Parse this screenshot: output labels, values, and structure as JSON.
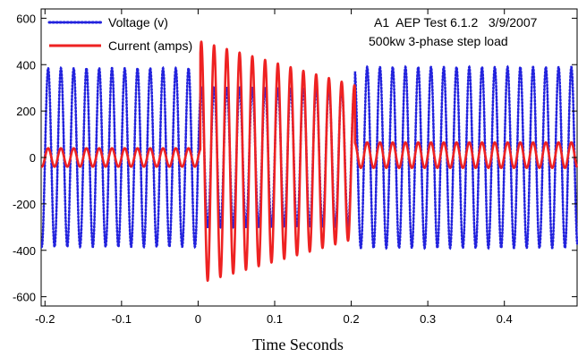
{
  "chart_data": {
    "type": "line",
    "xlabel": "Time Seconds",
    "ylabel": "",
    "xlim": [
      -0.205,
      0.495
    ],
    "ylim": [
      -640,
      640
    ],
    "x_ticks": [
      -0.2,
      -0.1,
      0,
      0.1,
      0.2,
      0.3,
      0.4
    ],
    "x_tick_labels": [
      "-0.2",
      "-0.1",
      "0",
      "0.1",
      "0.2",
      "0.3",
      "0.4"
    ],
    "y_ticks": [
      -600,
      -400,
      -200,
      0,
      200,
      400,
      600
    ],
    "y_tick_labels": [
      "-600",
      "-400",
      "-200",
      "0",
      "200",
      "400",
      "600"
    ],
    "grid": false,
    "legend_position": "top-left",
    "annotations": [
      "A1  AEP Test 6.1.2   3/9/2007",
      "500kw 3-phase step load"
    ],
    "series": [
      {
        "name": "Voltage (v)",
        "color": "#2222dd",
        "style": "dotted",
        "frequency_hz": 60,
        "segments": [
          {
            "x_start": -0.205,
            "x_end": 0.0,
            "amplitude": 385,
            "offset": 0
          },
          {
            "x_start": 0.0,
            "x_end": 0.205,
            "amplitude": 300,
            "offset": 0
          },
          {
            "x_start": 0.205,
            "x_end": 0.495,
            "amplitude": 390,
            "offset": 0
          }
        ]
      },
      {
        "name": "Current (amps)",
        "color": "#ee2222",
        "style": "solid",
        "frequency_hz": 60,
        "segments": [
          {
            "x_start": -0.205,
            "x_end": 0.003,
            "amplitude": 40,
            "offset": 0
          },
          {
            "x_start": 0.003,
            "x_end": 0.205,
            "amplitude_start": 520,
            "amplitude_end": 330,
            "offset": -20
          },
          {
            "x_start": 0.205,
            "x_end": 0.495,
            "amplitude": 55,
            "offset": 10
          }
        ]
      }
    ]
  }
}
